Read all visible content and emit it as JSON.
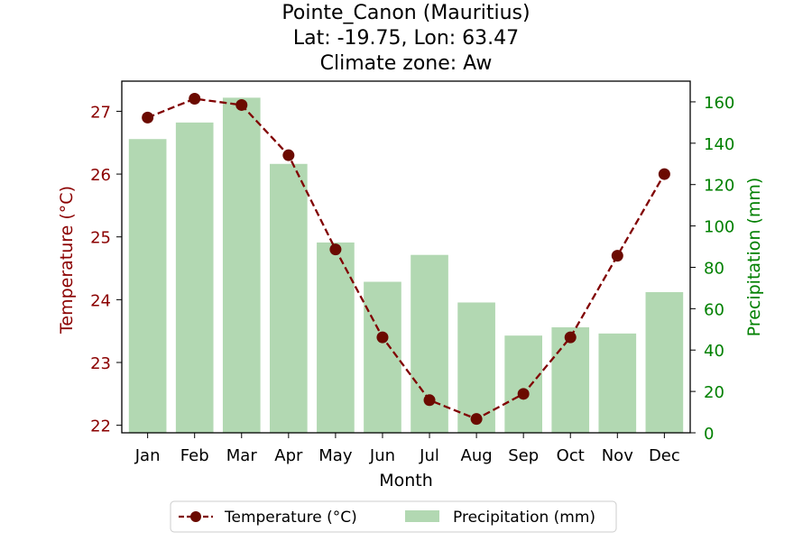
{
  "chart_data": {
    "type": "bar",
    "title_lines": [
      "Pointe_Canon (Mauritius)",
      "Lat: -19.75, Lon: 63.47",
      "Climate zone: Aw"
    ],
    "xlabel": "Month",
    "ylabel_left": "Temperature (°C)",
    "ylabel_right": "Precipitation (mm)",
    "categories": [
      "Jan",
      "Feb",
      "Mar",
      "Apr",
      "May",
      "Jun",
      "Jul",
      "Aug",
      "Sep",
      "Oct",
      "Nov",
      "Dec"
    ],
    "series": [
      {
        "name": "Temperature (°C)",
        "type": "line",
        "axis": "left",
        "color": "#800000",
        "values": [
          26.9,
          27.2,
          27.1,
          26.3,
          24.8,
          23.4,
          22.4,
          22.1,
          22.5,
          23.4,
          24.7,
          26.0
        ]
      },
      {
        "name": "Precipitation (mm)",
        "type": "bar",
        "axis": "right",
        "color": "#b2d8b2",
        "values": [
          142,
          150,
          162,
          130,
          92,
          73,
          86,
          63,
          47,
          51,
          48,
          68
        ]
      }
    ],
    "ylim_left": [
      21.88,
      27.48
    ],
    "ylim_right": [
      0,
      170
    ],
    "yticks_left": [
      "22",
      "23",
      "24",
      "25",
      "26",
      "27"
    ],
    "yticks_right": [
      "0",
      "20",
      "40",
      "60",
      "80",
      "100",
      "120",
      "140",
      "160"
    ],
    "left_axis_color": "#8b0000",
    "right_axis_color": "#008000",
    "grid": false,
    "legend_position": "bottom-center"
  }
}
